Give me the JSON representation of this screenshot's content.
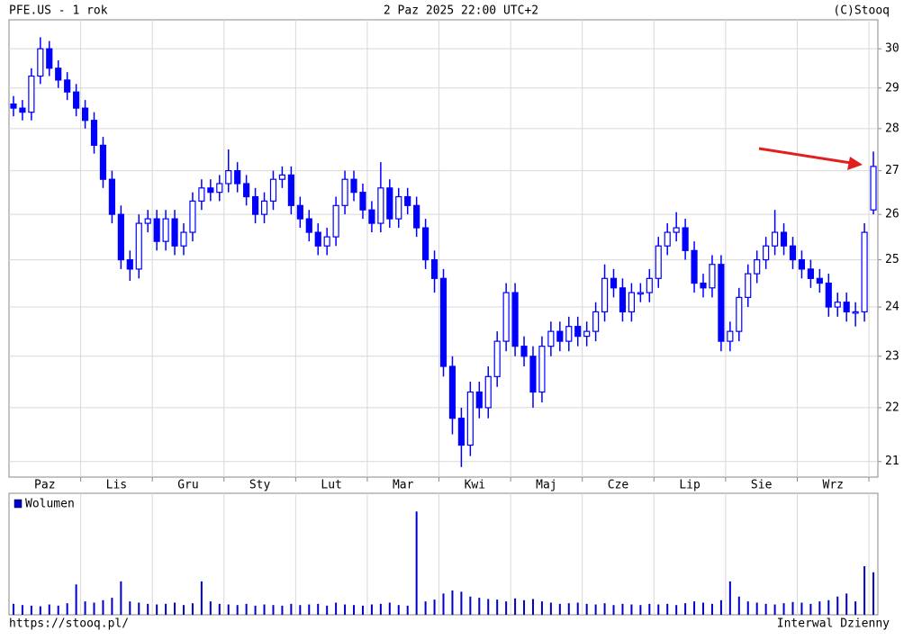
{
  "chart_data": {
    "type": "candlestick",
    "title": "PFE.US - 1 rok",
    "subtitle": "2 Paz 2025 22:00 UTC+2",
    "source": "(C)Stooq",
    "footer_left": "https://stooq.pl/",
    "footer_right": "Interwal Dzienny",
    "color": "#0000ff",
    "log": true,
    "grid": true,
    "ylim": [
      20.72,
      30.76
    ],
    "yticks": [
      21,
      22,
      23,
      24,
      25,
      26,
      27,
      28,
      29,
      30
    ],
    "categories": [
      "Paz",
      "Paz",
      "Paz",
      "Paz",
      "Paz",
      "Paz",
      "Paz",
      "Paz",
      "Lis",
      "Lis",
      "Lis",
      "Lis",
      "Lis",
      "Lis",
      "Lis",
      "Lis",
      "Gru",
      "Gru",
      "Gru",
      "Gru",
      "Gru",
      "Gru",
      "Gru",
      "Gru",
      "Sty",
      "Sty",
      "Sty",
      "Sty",
      "Sty",
      "Sty",
      "Sty",
      "Sty",
      "Lut",
      "Lut",
      "Lut",
      "Lut",
      "Lut",
      "Lut",
      "Lut",
      "Lut",
      "Mar",
      "Mar",
      "Mar",
      "Mar",
      "Mar",
      "Mar",
      "Mar",
      "Mar",
      "Kwi",
      "Kwi",
      "Kwi",
      "Kwi",
      "Kwi",
      "Kwi",
      "Kwi",
      "Kwi",
      "Maj",
      "Maj",
      "Maj",
      "Maj",
      "Maj",
      "Maj",
      "Maj",
      "Maj",
      "Cze",
      "Cze",
      "Cze",
      "Cze",
      "Cze",
      "Cze",
      "Cze",
      "Cze",
      "Lip",
      "Lip",
      "Lip",
      "Lip",
      "Lip",
      "Lip",
      "Lip",
      "Lip",
      "Sie",
      "Sie",
      "Sie",
      "Sie",
      "Sie",
      "Sie",
      "Sie",
      "Sie",
      "Wrz",
      "Wrz",
      "Wrz",
      "Wrz",
      "Wrz",
      "Wrz",
      "Wrz",
      "Wrz",
      "Paz"
    ],
    "open": [
      28.6,
      28.5,
      28.4,
      29.3,
      30.0,
      29.5,
      29.2,
      28.9,
      28.5,
      28.2,
      27.6,
      26.8,
      26.0,
      25.0,
      24.8,
      25.8,
      25.9,
      25.4,
      25.9,
      25.3,
      25.6,
      26.3,
      26.6,
      26.5,
      26.7,
      27.0,
      26.7,
      26.4,
      26.0,
      26.3,
      26.8,
      26.9,
      26.2,
      25.9,
      25.6,
      25.3,
      25.5,
      26.2,
      26.8,
      26.5,
      26.1,
      25.8,
      26.6,
      25.9,
      26.4,
      26.2,
      25.7,
      25.0,
      24.6,
      22.8,
      21.8,
      21.3,
      22.3,
      22.0,
      22.6,
      23.3,
      24.3,
      23.2,
      23.0,
      22.3,
      23.2,
      23.5,
      23.3,
      23.6,
      23.4,
      23.5,
      23.9,
      24.6,
      24.4,
      23.9,
      24.3,
      24.3,
      24.6,
      25.3,
      25.6,
      25.7,
      25.2,
      24.5,
      24.4,
      24.9,
      23.3,
      23.5,
      24.2,
      24.7,
      25.0,
      25.3,
      25.6,
      25.3,
      25.0,
      24.8,
      24.6,
      24.5,
      24.0,
      24.1,
      23.9,
      23.9,
      26.1
    ],
    "high": [
      28.8,
      28.7,
      29.5,
      30.3,
      30.2,
      29.7,
      29.4,
      29.1,
      28.7,
      28.4,
      27.8,
      27.0,
      26.2,
      25.2,
      26.0,
      26.1,
      26.1,
      26.1,
      26.1,
      25.8,
      26.5,
      26.8,
      26.8,
      26.9,
      27.5,
      27.2,
      26.9,
      26.6,
      26.5,
      27.0,
      27.1,
      27.1,
      26.4,
      26.1,
      25.8,
      25.7,
      26.4,
      27.0,
      27.0,
      26.7,
      26.3,
      27.2,
      26.8,
      26.6,
      26.6,
      26.4,
      25.9,
      25.2,
      24.8,
      23.0,
      22.0,
      22.5,
      22.5,
      22.8,
      23.5,
      24.5,
      24.5,
      23.4,
      23.2,
      23.4,
      23.7,
      23.7,
      23.8,
      23.8,
      23.7,
      24.1,
      24.9,
      24.8,
      24.6,
      24.5,
      24.5,
      24.8,
      25.5,
      25.8,
      26.05,
      25.9,
      25.4,
      24.7,
      25.1,
      25.1,
      23.7,
      24.4,
      24.9,
      25.2,
      25.5,
      26.1,
      25.8,
      25.5,
      25.2,
      25.0,
      24.8,
      24.7,
      24.3,
      24.3,
      24.1,
      25.8,
      27.45
    ],
    "low": [
      28.3,
      28.2,
      28.2,
      29.1,
      29.3,
      29.0,
      28.7,
      28.3,
      28.0,
      27.4,
      26.6,
      25.8,
      24.8,
      24.55,
      24.6,
      25.6,
      25.2,
      25.2,
      25.1,
      25.1,
      25.4,
      26.1,
      26.3,
      26.3,
      26.5,
      26.5,
      26.2,
      25.8,
      25.8,
      26.1,
      26.6,
      26.0,
      25.7,
      25.4,
      25.1,
      25.1,
      25.3,
      26.0,
      26.3,
      25.9,
      25.6,
      25.6,
      25.7,
      25.7,
      26.0,
      25.5,
      24.8,
      24.3,
      22.6,
      21.5,
      20.9,
      21.1,
      21.8,
      21.8,
      22.4,
      23.1,
      23.0,
      22.8,
      22.0,
      22.1,
      23.0,
      23.1,
      23.1,
      23.2,
      23.2,
      23.3,
      23.7,
      24.2,
      23.7,
      23.7,
      24.1,
      24.1,
      24.4,
      25.1,
      25.4,
      25.0,
      24.3,
      24.2,
      24.2,
      23.1,
      23.1,
      23.3,
      24.0,
      24.5,
      24.8,
      25.1,
      25.1,
      24.8,
      24.6,
      24.4,
      24.3,
      23.8,
      23.8,
      23.7,
      23.6,
      23.7,
      26.0
    ],
    "close": [
      28.5,
      28.4,
      29.3,
      30.0,
      29.5,
      29.2,
      28.9,
      28.5,
      28.2,
      27.6,
      26.8,
      26.0,
      25.0,
      24.8,
      25.8,
      25.9,
      25.4,
      25.9,
      25.3,
      25.6,
      26.3,
      26.6,
      26.5,
      26.7,
      27.0,
      26.7,
      26.4,
      26.0,
      26.3,
      26.8,
      26.9,
      26.2,
      25.9,
      25.6,
      25.3,
      25.5,
      26.2,
      26.8,
      26.5,
      26.1,
      25.8,
      26.6,
      25.9,
      26.4,
      26.2,
      25.7,
      25.0,
      24.6,
      22.8,
      21.8,
      21.3,
      22.3,
      22.0,
      22.6,
      23.3,
      24.3,
      23.2,
      23.0,
      22.3,
      23.2,
      23.5,
      23.3,
      23.6,
      23.4,
      23.5,
      23.9,
      24.6,
      24.4,
      23.9,
      24.3,
      24.3,
      24.6,
      25.3,
      25.6,
      25.7,
      25.2,
      24.5,
      24.4,
      24.9,
      23.3,
      23.5,
      24.2,
      24.7,
      25.0,
      25.3,
      25.6,
      25.3,
      25.0,
      24.8,
      24.6,
      24.5,
      24.0,
      24.1,
      23.9,
      23.9,
      25.6,
      27.1
    ],
    "volume": {
      "name": "Wolumen",
      "color": "#0000cc",
      "ylim": [
        0,
        200
      ],
      "values": [
        18,
        16,
        15,
        14,
        17,
        15,
        19,
        50,
        22,
        20,
        24,
        28,
        55,
        22,
        20,
        18,
        17,
        18,
        20,
        16,
        19,
        55,
        22,
        18,
        17,
        16,
        18,
        15,
        17,
        16,
        15,
        18,
        16,
        17,
        18,
        15,
        20,
        17,
        16,
        15,
        17,
        18,
        20,
        16,
        15,
        170,
        22,
        25,
        35,
        40,
        38,
        30,
        28,
        26,
        25,
        22,
        27,
        24,
        26,
        22,
        20,
        18,
        19,
        20,
        18,
        17,
        19,
        16,
        18,
        17,
        16,
        18,
        17,
        18,
        16,
        19,
        22,
        20,
        18,
        24,
        55,
        30,
        22,
        20,
        18,
        17,
        19,
        21,
        20,
        18,
        22,
        24,
        30,
        35,
        22,
        80,
        70
      ]
    }
  }
}
